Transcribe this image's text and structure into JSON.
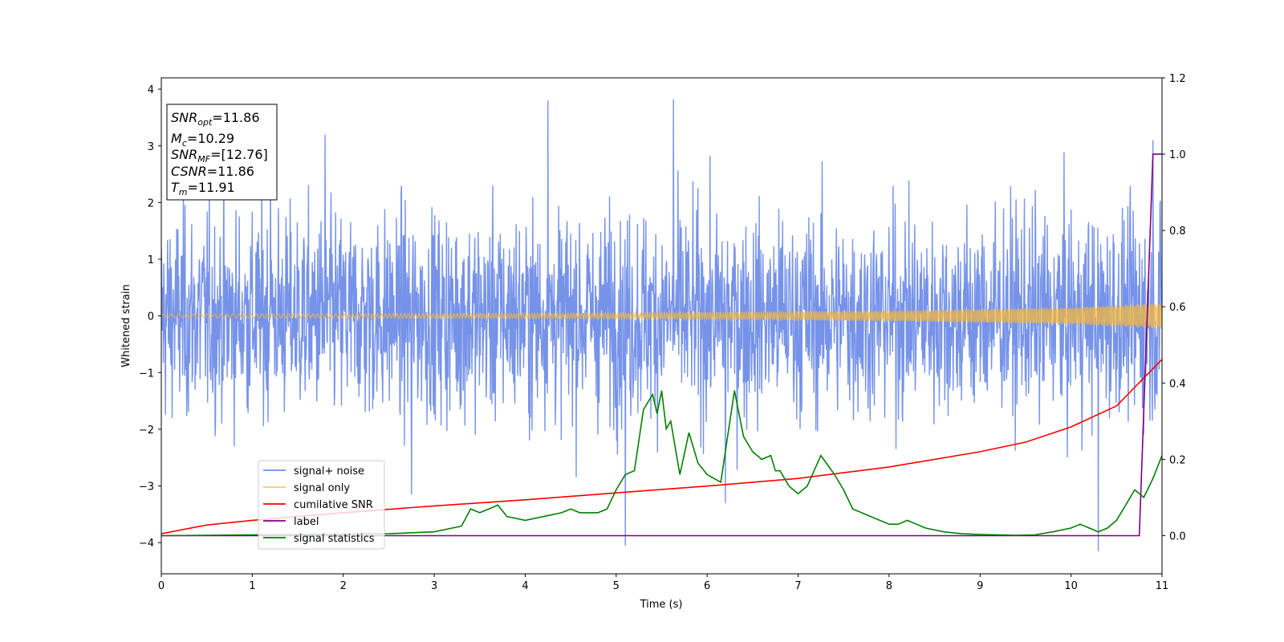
{
  "chart_data": {
    "type": "line",
    "xlabel": "Time (s)",
    "ylabel": "Whitened strain",
    "xlim": [
      0,
      11
    ],
    "ylim": [
      -4.55,
      4.2
    ],
    "y2lim": [
      -0.1,
      1.2
    ],
    "xticks": [
      "0",
      "1",
      "2",
      "3",
      "4",
      "5",
      "6",
      "7",
      "8",
      "9",
      "10",
      "11"
    ],
    "yticks": [
      "−4",
      "−3",
      "−2",
      "−1",
      "0",
      "1",
      "2",
      "3",
      "4"
    ],
    "y2ticks": [
      "0.0",
      "0.2",
      "0.4",
      "0.6",
      "0.8",
      "1.0",
      "1.2"
    ],
    "grid": false,
    "legend_position": "lower-left",
    "info_box": {
      "snr_opt": {
        "base": "SNR",
        "sub": "opt",
        "value": "=11.86"
      },
      "mc": {
        "base": "M",
        "sub": "c",
        "value": "=10.29"
      },
      "snr_mf": {
        "base": "SNR",
        "sub": "MF",
        "value": "=[12.76]"
      },
      "csnr": {
        "base": "CSNR",
        "sub": "",
        "value": "=11.86"
      },
      "tm": {
        "base": "T",
        "sub": "m",
        "value": "=11.91"
      }
    },
    "series": [
      {
        "name": "signal+ noise",
        "color": "#4169e1",
        "axis": "left",
        "kind": "noise",
        "noise_std": 0.9,
        "spikes": [
          [
            1.2,
            2.6
          ],
          [
            1.8,
            3.2
          ],
          [
            4.25,
            3.8
          ],
          [
            5.1,
            -4.05
          ],
          [
            5.63,
            3.82
          ],
          [
            10.3,
            -4.15
          ],
          [
            10.9,
            3.1
          ],
          [
            2.75,
            -3.15
          ],
          [
            6.2,
            -3.3
          ]
        ]
      },
      {
        "name": "signal only",
        "color": "#f5b83d",
        "axis": "left",
        "kind": "chirp",
        "envelope": [
          [
            0,
            0.03
          ],
          [
            5,
            0.05
          ],
          [
            8,
            0.09
          ],
          [
            10,
            0.15
          ],
          [
            11,
            0.23
          ]
        ]
      },
      {
        "name": "cumilative SNR",
        "color": "#ff0000",
        "axis": "right",
        "x": [
          0,
          0.5,
          1,
          2,
          3,
          4,
          5,
          6,
          7,
          8,
          9,
          9.5,
          10,
          10.5,
          11
        ],
        "y": [
          0.005,
          0.028,
          0.04,
          0.06,
          0.078,
          0.094,
          0.112,
          0.13,
          0.15,
          0.18,
          0.22,
          0.245,
          0.285,
          0.34,
          0.462
        ]
      },
      {
        "name": "label",
        "color": "#800080",
        "axis": "right",
        "x": [
          0,
          10.75,
          10.9,
          11
        ],
        "y": [
          0,
          0,
          1,
          1
        ]
      },
      {
        "name": "signal statistics",
        "color": "#008000",
        "axis": "right",
        "x": [
          0,
          1,
          2,
          2.5,
          3,
          3.3,
          3.4,
          3.5,
          3.6,
          3.7,
          3.8,
          4,
          4.2,
          4.4,
          4.5,
          4.6,
          4.8,
          4.9,
          5,
          5.1,
          5.2,
          5.3,
          5.4,
          5.45,
          5.5,
          5.55,
          5.6,
          5.7,
          5.8,
          5.9,
          6.0,
          6.15,
          6.3,
          6.4,
          6.5,
          6.6,
          6.7,
          6.75,
          6.8,
          6.9,
          7.0,
          7.1,
          7.25,
          7.4,
          7.5,
          7.6,
          7.8,
          8.0,
          8.1,
          8.2,
          8.4,
          8.6,
          8.8,
          9.0,
          9.2,
          9.4,
          9.6,
          9.8,
          10.0,
          10.1,
          10.2,
          10.3,
          10.4,
          10.5,
          10.6,
          10.7,
          10.8,
          10.9,
          11.0
        ],
        "y": [
          0.0,
          0.002,
          0.004,
          0.005,
          0.01,
          0.025,
          0.07,
          0.06,
          0.07,
          0.08,
          0.05,
          0.04,
          0.05,
          0.06,
          0.07,
          0.06,
          0.06,
          0.07,
          0.12,
          0.16,
          0.17,
          0.33,
          0.37,
          0.32,
          0.38,
          0.28,
          0.3,
          0.16,
          0.27,
          0.19,
          0.16,
          0.14,
          0.38,
          0.26,
          0.22,
          0.2,
          0.21,
          0.17,
          0.17,
          0.13,
          0.11,
          0.13,
          0.21,
          0.16,
          0.12,
          0.07,
          0.05,
          0.03,
          0.03,
          0.04,
          0.02,
          0.01,
          0.005,
          0.003,
          0.002,
          0.001,
          0.002,
          0.01,
          0.02,
          0.03,
          0.02,
          0.01,
          0.02,
          0.04,
          0.08,
          0.12,
          0.1,
          0.15,
          0.21
        ]
      }
    ]
  }
}
